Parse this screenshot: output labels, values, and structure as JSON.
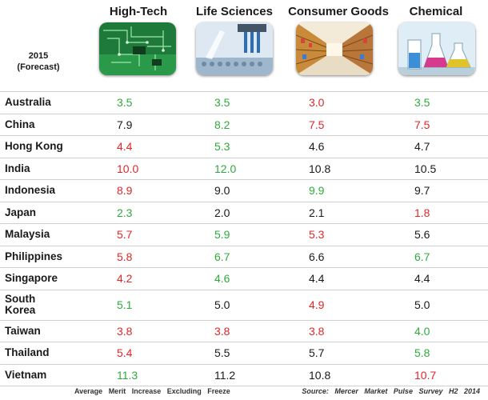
{
  "colors": {
    "green": "#2eab3c",
    "red": "#e0262b",
    "black": "#1a1a1a"
  },
  "header": {
    "year": "2015",
    "forecast": "(Forecast)"
  },
  "chart_data": {
    "type": "table",
    "columns": [
      {
        "label": "High-Tech",
        "icon": "circuit-board-icon"
      },
      {
        "label": "Life Sciences",
        "icon": "lab-pipette-icon"
      },
      {
        "label": "Consumer Goods",
        "icon": "supermarket-aisle-icon"
      },
      {
        "label": "Chemical",
        "icon": "chemistry-flask-icon"
      }
    ],
    "rows": [
      {
        "country": "Australia",
        "values": [
          "3.5",
          "3.5",
          "3.0",
          "3.5"
        ],
        "colors": [
          "green",
          "green",
          "red",
          "green"
        ]
      },
      {
        "country": "China",
        "values": [
          "7.9",
          "8.2",
          "7.5",
          "7.5"
        ],
        "colors": [
          "black",
          "green",
          "red",
          "red"
        ]
      },
      {
        "country": "Hong Kong",
        "values": [
          "4.4",
          "5.3",
          "4.6",
          "4.7"
        ],
        "colors": [
          "red",
          "green",
          "black",
          "black"
        ]
      },
      {
        "country": "India",
        "values": [
          "10.0",
          "12.0",
          "10.8",
          "10.5"
        ],
        "colors": [
          "red",
          "green",
          "black",
          "black"
        ]
      },
      {
        "country": "Indonesia",
        "values": [
          "8.9",
          "9.0",
          "9.9",
          "9.7"
        ],
        "colors": [
          "red",
          "black",
          "green",
          "black"
        ]
      },
      {
        "country": "Japan",
        "values": [
          "2.3",
          "2.0",
          "2.1",
          "1.8"
        ],
        "colors": [
          "green",
          "black",
          "black",
          "red"
        ]
      },
      {
        "country": "Malaysia",
        "values": [
          "5.7",
          "5.9",
          "5.3",
          "5.6"
        ],
        "colors": [
          "red",
          "green",
          "red",
          "black"
        ]
      },
      {
        "country": "Philippines",
        "values": [
          "5.8",
          "6.7",
          "6.6",
          "6.7"
        ],
        "colors": [
          "red",
          "green",
          "black",
          "green"
        ]
      },
      {
        "country": "Singapore",
        "values": [
          "4.2",
          "4.6",
          "4.4",
          "4.4"
        ],
        "colors": [
          "red",
          "green",
          "black",
          "black"
        ]
      },
      {
        "country": "South Korea",
        "values": [
          "5.1",
          "5.0",
          "4.9",
          "5.0"
        ],
        "colors": [
          "green",
          "black",
          "red",
          "black"
        ]
      },
      {
        "country": "Taiwan",
        "values": [
          "3.8",
          "3.8",
          "3.8",
          "4.0"
        ],
        "colors": [
          "red",
          "red",
          "red",
          "green"
        ]
      },
      {
        "country": "Thailand",
        "values": [
          "5.4",
          "5.5",
          "5.7",
          "5.8"
        ],
        "colors": [
          "red",
          "black",
          "black",
          "green"
        ]
      },
      {
        "country": "Vietnam",
        "values": [
          "11.3",
          "11.2",
          "10.8",
          "10.7"
        ],
        "colors": [
          "green",
          "black",
          "black",
          "red"
        ]
      }
    ]
  },
  "footer": {
    "note": "Average Merit Increase Excluding Freeze",
    "source": "Source: Mercer Market Pulse Survey H2 2014"
  }
}
